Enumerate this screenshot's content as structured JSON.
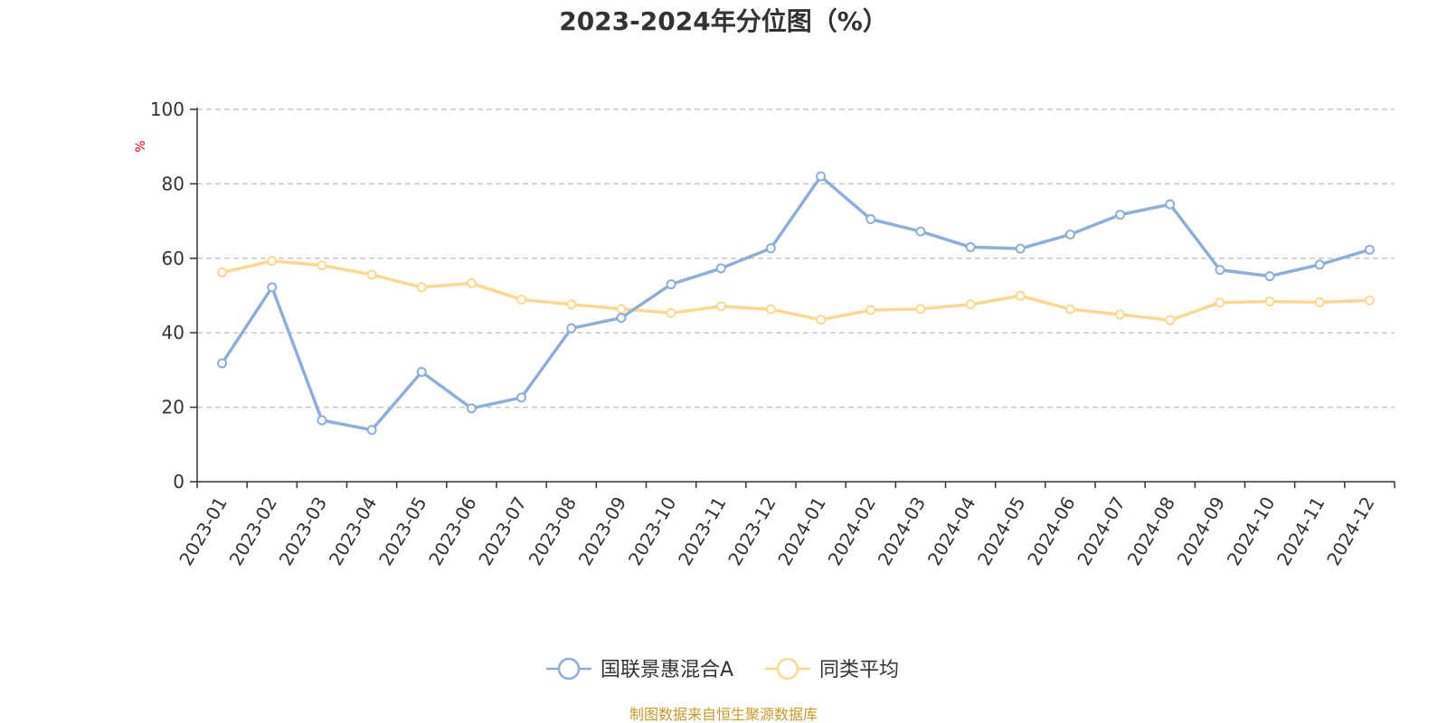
{
  "chart_data": {
    "type": "line",
    "title": "2023-2024年分位图（%）",
    "ylabel": "%",
    "xlabel": "",
    "ylim": [
      0,
      100
    ],
    "yticks": [
      0,
      20,
      40,
      60,
      80,
      100
    ],
    "grid": true,
    "legend_position": "bottom",
    "categories": [
      "2023-01",
      "2023-02",
      "2023-03",
      "2023-04",
      "2023-05",
      "2023-06",
      "2023-07",
      "2023-08",
      "2023-09",
      "2023-10",
      "2023-11",
      "2023-12",
      "2024-01",
      "2024-02",
      "2024-03",
      "2024-04",
      "2024-05",
      "2024-06",
      "2024-07",
      "2024-08",
      "2024-09",
      "2024-10",
      "2024-11",
      "2024-12"
    ],
    "series": [
      {
        "name": "国联景惠混合A",
        "color": "#8eaedb",
        "values": [
          31.8,
          52.2,
          16.5,
          13.9,
          29.5,
          19.7,
          22.6,
          41.2,
          44.0,
          53.0,
          57.3,
          62.7,
          82.0,
          70.5,
          67.2,
          63.0,
          62.6,
          66.4,
          71.7,
          74.5,
          56.9,
          55.2,
          58.3,
          62.3
        ]
      },
      {
        "name": "同类平均",
        "color": "#fdd990",
        "values": [
          56.2,
          59.3,
          58.1,
          55.6,
          52.2,
          53.3,
          48.9,
          47.6,
          46.4,
          45.3,
          47.1,
          46.3,
          43.5,
          46.1,
          46.4,
          47.6,
          49.9,
          46.3,
          44.9,
          43.4,
          48.1,
          48.4,
          48.2,
          48.7
        ]
      }
    ]
  },
  "source_text": "制图数据来自恒生聚源数据库",
  "source_color": "#c89a2a",
  "axis_color": "#333333",
  "grid_color": "#c8c8c8"
}
